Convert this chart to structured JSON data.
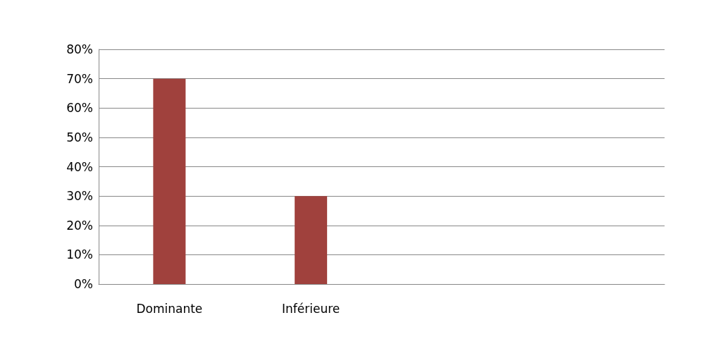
{
  "chart_data": {
    "type": "bar",
    "categories": [
      "Dominante",
      "Inférieure",
      null,
      null
    ],
    "values": [
      70,
      30,
      null,
      null
    ],
    "color": "#a0413d",
    "ylim": [
      0,
      80
    ],
    "yticks": [
      {
        "value": 0,
        "label": "0%"
      },
      {
        "value": 10,
        "label": "10%"
      },
      {
        "value": 20,
        "label": "20%"
      },
      {
        "value": 30,
        "label": "30%"
      },
      {
        "value": 40,
        "label": "40%"
      },
      {
        "value": 50,
        "label": "50%"
      },
      {
        "value": 60,
        "label": "60%"
      },
      {
        "value": 70,
        "label": "70%"
      },
      {
        "value": 80,
        "label": "80%"
      }
    ],
    "grid": "y"
  }
}
